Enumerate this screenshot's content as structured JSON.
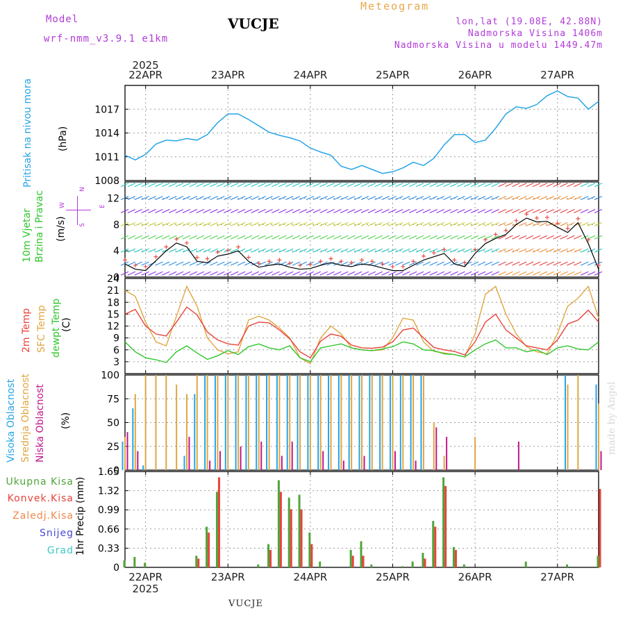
{
  "header": {
    "model_label": "Model",
    "model_name": "wrf-nmm_v3.9.1 e1km",
    "station": "VUCJE",
    "title": "Meteogram",
    "coords": "lon,lat (19.08E, 42.88N)",
    "altitude": "Nadmorska Visina 1406m",
    "model_altitude": "Nadmorska Visina u modelu 1449.47m",
    "bottom_station": "VUCJE",
    "watermark": "made by Angel"
  },
  "time_axis": {
    "year": "2025",
    "days": [
      "22APR",
      "23APR",
      "24APR",
      "25APR",
      "26APR",
      "27APR"
    ],
    "start_hour_before_first_midnight": 6,
    "total_hours": 138
  },
  "colors": {
    "pressure": "#27a4e6",
    "temp2m": "#e8433a",
    "sfc": "#e0a640",
    "dewpt": "#2ec62a",
    "high_cloud": "#27a4e6",
    "mid_cloud": "#e0a640",
    "low_cloud": "#c0168a",
    "precip_total": "#4fa43a",
    "precip_conv": "#e8433a",
    "grid": "#9a9a9a"
  },
  "chart_data": [
    {
      "type": "line",
      "title": "Pritisak na nivou mora",
      "ylabel": "(hPa)",
      "ylim": [
        1008,
        1020
      ],
      "yticks": [
        "1008",
        "1011",
        "1014",
        "1017"
      ],
      "x_hours": [
        0,
        3,
        6,
        9,
        12,
        15,
        18,
        21,
        24,
        27,
        30,
        33,
        36,
        39,
        42,
        45,
        48,
        51,
        54,
        57,
        60,
        63,
        66,
        69,
        72,
        75,
        78,
        81,
        84,
        87,
        90,
        93,
        96,
        99,
        102,
        105,
        108,
        111,
        114,
        117,
        120,
        123,
        126,
        129,
        132,
        135,
        138
      ],
      "series": [
        {
          "name": "Pritisak na nivou mora",
          "values": [
            1011.2,
            1010.6,
            1011.3,
            1012.6,
            1013.1,
            1013.0,
            1013.3,
            1013.1,
            1013.8,
            1015.3,
            1016.4,
            1016.4,
            1015.7,
            1014.9,
            1014.1,
            1013.7,
            1013.4,
            1013.0,
            1012.1,
            1011.6,
            1011.2,
            1009.8,
            1009.4,
            1009.9,
            1009.4,
            1008.9,
            1009.1,
            1009.6,
            1010.3,
            1009.9,
            1010.8,
            1012.5,
            1013.8,
            1013.8,
            1012.8,
            1013.1,
            1014.6,
            1016.4,
            1017.3,
            1017.1,
            1017.6,
            1018.7,
            1019.3,
            1018.6,
            1018.4,
            1017.0,
            1018.0
          ]
        }
      ]
    },
    {
      "type": "line",
      "title": "10m Vjetar Brzina i Pravac",
      "ylabel": "(m/s)",
      "ylim": [
        0,
        14.5
      ],
      "yticks": [
        "0",
        "4",
        "8",
        "12"
      ],
      "legend": [
        "N",
        "W",
        "E",
        "S"
      ],
      "x_hours": [
        0,
        3,
        6,
        9,
        12,
        15,
        18,
        21,
        24,
        27,
        30,
        33,
        36,
        39,
        42,
        45,
        48,
        51,
        54,
        57,
        60,
        63,
        66,
        69,
        72,
        75,
        78,
        81,
        84,
        87,
        90,
        93,
        96,
        99,
        102,
        105,
        108,
        111,
        114,
        117,
        120,
        123,
        126,
        129,
        132,
        135,
        138
      ],
      "series": [
        {
          "name": "10m Vjetar Brzina",
          "values": [
            2.0,
            1.2,
            1.0,
            2.5,
            4.0,
            5.2,
            4.6,
            2.4,
            2.2,
            3.2,
            3.5,
            4.0,
            2.4,
            1.5,
            1.8,
            2.0,
            1.5,
            1.2,
            1.3,
            1.8,
            2.2,
            1.8,
            1.6,
            2.0,
            1.8,
            1.4,
            1.0,
            1.0,
            1.8,
            2.6,
            3.1,
            3.6,
            2.0,
            1.6,
            3.6,
            5.1,
            5.9,
            6.5,
            8.0,
            9.0,
            8.4,
            8.5,
            7.6,
            6.8,
            8.3,
            5.1,
            1.2
          ]
        }
      ]
    },
    {
      "type": "line",
      "title": "2m Temp / SFC Temp / dewpt Temp",
      "ylabel": "(C)",
      "ylim": [
        0,
        24
      ],
      "yticks": [
        "3",
        "6",
        "9",
        "12",
        "15",
        "18",
        "21",
        "24"
      ],
      "x_hours": [
        0,
        3,
        6,
        9,
        12,
        15,
        18,
        21,
        24,
        27,
        30,
        33,
        36,
        39,
        42,
        45,
        48,
        51,
        54,
        57,
        60,
        63,
        66,
        69,
        72,
        75,
        78,
        81,
        84,
        87,
        90,
        93,
        96,
        99,
        102,
        105,
        108,
        111,
        114,
        117,
        120,
        123,
        126,
        129,
        132,
        135,
        138
      ],
      "series": [
        {
          "name": "2m Temp",
          "values": [
            15.0,
            16.2,
            12.0,
            10.0,
            9.5,
            13.0,
            16.8,
            14.8,
            10.5,
            8.5,
            7.5,
            7.2,
            12.0,
            13.0,
            12.8,
            11.0,
            8.8,
            5.5,
            4.0,
            8.2,
            10.0,
            9.4,
            7.2,
            6.5,
            6.4,
            6.7,
            8.0,
            11.0,
            11.5,
            9.0,
            6.6,
            6.0,
            5.6,
            4.7,
            8.0,
            13.0,
            15.0,
            11.0,
            9.0,
            7.0,
            6.5,
            6.0,
            8.5,
            12.5,
            13.5,
            16.0,
            13.0
          ]
        },
        {
          "name": "SFC Temp",
          "values": [
            21.0,
            19.5,
            13.0,
            8.0,
            7.0,
            14.5,
            22.0,
            17.0,
            9.0,
            6.0,
            5.0,
            5.5,
            13.5,
            14.5,
            13.5,
            11.5,
            9.0,
            4.0,
            2.5,
            9.0,
            12.0,
            10.0,
            6.5,
            6.0,
            5.8,
            6.0,
            9.0,
            14.0,
            13.5,
            8.0,
            5.6,
            5.2,
            4.8,
            4.2,
            10.0,
            20.0,
            22.0,
            15.0,
            10.0,
            6.8,
            5.5,
            5.0,
            10.0,
            17.0,
            19.0,
            22.0,
            14.0
          ]
        },
        {
          "name": "dewpt Temp",
          "values": [
            8.0,
            5.5,
            4.0,
            3.5,
            2.8,
            5.5,
            7.0,
            5.2,
            3.6,
            4.5,
            5.8,
            4.8,
            6.8,
            7.5,
            6.5,
            6.0,
            7.0,
            4.0,
            3.0,
            6.5,
            7.0,
            7.5,
            6.5,
            6.0,
            5.8,
            6.2,
            6.8,
            8.0,
            7.5,
            6.0,
            5.8,
            5.0,
            4.8,
            4.2,
            6.0,
            7.5,
            8.5,
            6.5,
            6.5,
            5.5,
            6.0,
            4.8,
            6.5,
            7.0,
            6.2,
            6.0,
            8.0
          ]
        }
      ]
    },
    {
      "type": "bar",
      "title": "Visoka Oblacnost / Srednja Oblacnost / Niska Oblacnost",
      "ylabel": "(%)",
      "ylim": [
        0,
        100
      ],
      "yticks": [
        "0",
        "25",
        "50",
        "75",
        "100"
      ],
      "x_hours": [
        0,
        3,
        6,
        9,
        12,
        15,
        18,
        21,
        24,
        27,
        30,
        33,
        36,
        39,
        42,
        45,
        48,
        51,
        54,
        57,
        60,
        63,
        66,
        69,
        72,
        75,
        78,
        81,
        84,
        87,
        90,
        93,
        96,
        99,
        102,
        105,
        108,
        111,
        114,
        117,
        120,
        123,
        126,
        129,
        132,
        135,
        138
      ],
      "series": [
        {
          "name": "Visoka Oblacnost",
          "values": [
            30,
            65,
            5,
            0,
            0,
            0,
            15,
            80,
            100,
            100,
            100,
            100,
            100,
            100,
            100,
            100,
            100,
            100,
            100,
            100,
            100,
            100,
            100,
            100,
            100,
            100,
            100,
            100,
            100,
            100,
            0,
            0,
            0,
            0,
            0,
            0,
            0,
            0,
            0,
            0,
            0,
            0,
            0,
            100,
            0,
            0,
            90
          ]
        },
        {
          "name": "Srednja Oblacnost",
          "values": [
            35,
            80,
            100,
            100,
            100,
            90,
            80,
            100,
            100,
            100,
            100,
            100,
            100,
            100,
            100,
            100,
            100,
            100,
            100,
            100,
            100,
            100,
            100,
            100,
            100,
            100,
            100,
            100,
            100,
            100,
            50,
            15,
            0,
            0,
            35,
            0,
            0,
            0,
            0,
            0,
            0,
            0,
            0,
            90,
            100,
            0,
            70
          ]
        },
        {
          "name": "Niska Oblacnost",
          "values": [
            40,
            20,
            0,
            0,
            0,
            0,
            35,
            0,
            10,
            20,
            0,
            25,
            0,
            30,
            0,
            15,
            30,
            0,
            0,
            20,
            0,
            10,
            0,
            15,
            0,
            0,
            20,
            0,
            10,
            0,
            45,
            35,
            0,
            0,
            0,
            0,
            0,
            0,
            30,
            0,
            0,
            0,
            0,
            0,
            0,
            0,
            20
          ]
        }
      ]
    },
    {
      "type": "bar",
      "title": "Ukupna Kisa / Konvek.Kisa / Zaledj.Kisa / Snijeg / Grad",
      "ylabel": "1hr Precip (mm)",
      "ylim": [
        0,
        1.65
      ],
      "yticks": [
        "0",
        "0.33",
        "0.66",
        "0.99",
        "1.32",
        "1.65"
      ],
      "x_hours": [
        0,
        3,
        6,
        9,
        12,
        15,
        18,
        21,
        24,
        27,
        30,
        33,
        36,
        39,
        42,
        45,
        48,
        51,
        54,
        57,
        60,
        63,
        66,
        69,
        72,
        75,
        78,
        81,
        84,
        87,
        90,
        93,
        96,
        99,
        102,
        105,
        108,
        111,
        114,
        117,
        120,
        123,
        126,
        129,
        132,
        135,
        138
      ],
      "series": [
        {
          "name": "Ukupna Kisa",
          "values": [
            0.12,
            0.18,
            0.08,
            0.0,
            0.0,
            0.0,
            0.0,
            0.2,
            0.7,
            1.3,
            0.0,
            0.0,
            0.0,
            0.05,
            0.4,
            1.5,
            1.2,
            1.25,
            0.6,
            0.1,
            0.0,
            0.0,
            0.3,
            0.45,
            0.05,
            0.0,
            0.0,
            0.02,
            0.1,
            0.25,
            0.8,
            1.55,
            0.35,
            0.05,
            0.0,
            0.0,
            0.0,
            0.0,
            0.0,
            0.1,
            0.0,
            0.0,
            0.0,
            0.05,
            0.0,
            0.0,
            0.2
          ]
        },
        {
          "name": "Konvek.Kisa",
          "values": [
            0.0,
            0.0,
            0.0,
            0.0,
            0.0,
            0.0,
            0.0,
            0.15,
            0.6,
            1.55,
            0.0,
            0.0,
            0.0,
            0.0,
            0.3,
            1.3,
            1.0,
            1.0,
            0.4,
            0.0,
            0.0,
            0.0,
            0.2,
            0.2,
            0.0,
            0.0,
            0.0,
            0.0,
            0.0,
            0.15,
            0.7,
            1.4,
            0.3,
            0.0,
            0.0,
            0.0,
            0.0,
            0.0,
            0.0,
            0.0,
            0.0,
            0.0,
            0.0,
            0.0,
            0.0,
            0.0,
            1.35
          ]
        }
      ]
    }
  ]
}
